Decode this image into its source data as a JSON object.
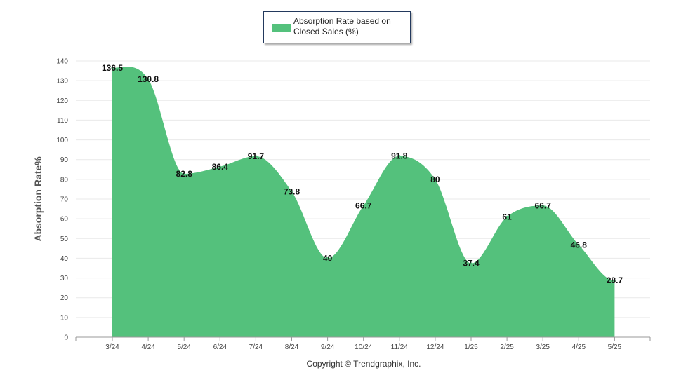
{
  "colors": {
    "fill": "#54c17c",
    "grid": "#e9e9e9",
    "axis": "#999999",
    "legend_border": "#23395d"
  },
  "legend": {
    "label": "Absorption Rate based on Closed Sales (%)"
  },
  "footer": {
    "copyright": "Copyright © Trendgraphix, Inc."
  },
  "chart_data": {
    "type": "area",
    "title": "",
    "xlabel": "",
    "ylabel": "Absorption Rate%",
    "categories": [
      "3/24",
      "4/24",
      "5/24",
      "6/24",
      "7/24",
      "8/24",
      "9/24",
      "10/24",
      "11/24",
      "12/24",
      "1/25",
      "2/25",
      "3/25",
      "4/25",
      "5/25"
    ],
    "series": [
      {
        "name": "Absorption Rate based on Closed Sales (%)",
        "values": [
          136.5,
          130.8,
          82.8,
          86.4,
          91.7,
          73.8,
          40,
          66.7,
          91.8,
          80,
          37.4,
          61,
          66.7,
          46.8,
          28.7
        ]
      }
    ],
    "ylim": [
      0,
      140
    ],
    "yticks": [
      0,
      10,
      20,
      30,
      40,
      50,
      60,
      70,
      80,
      90,
      100,
      110,
      120,
      130,
      140
    ],
    "grid": true,
    "legend_position": "top-center"
  }
}
